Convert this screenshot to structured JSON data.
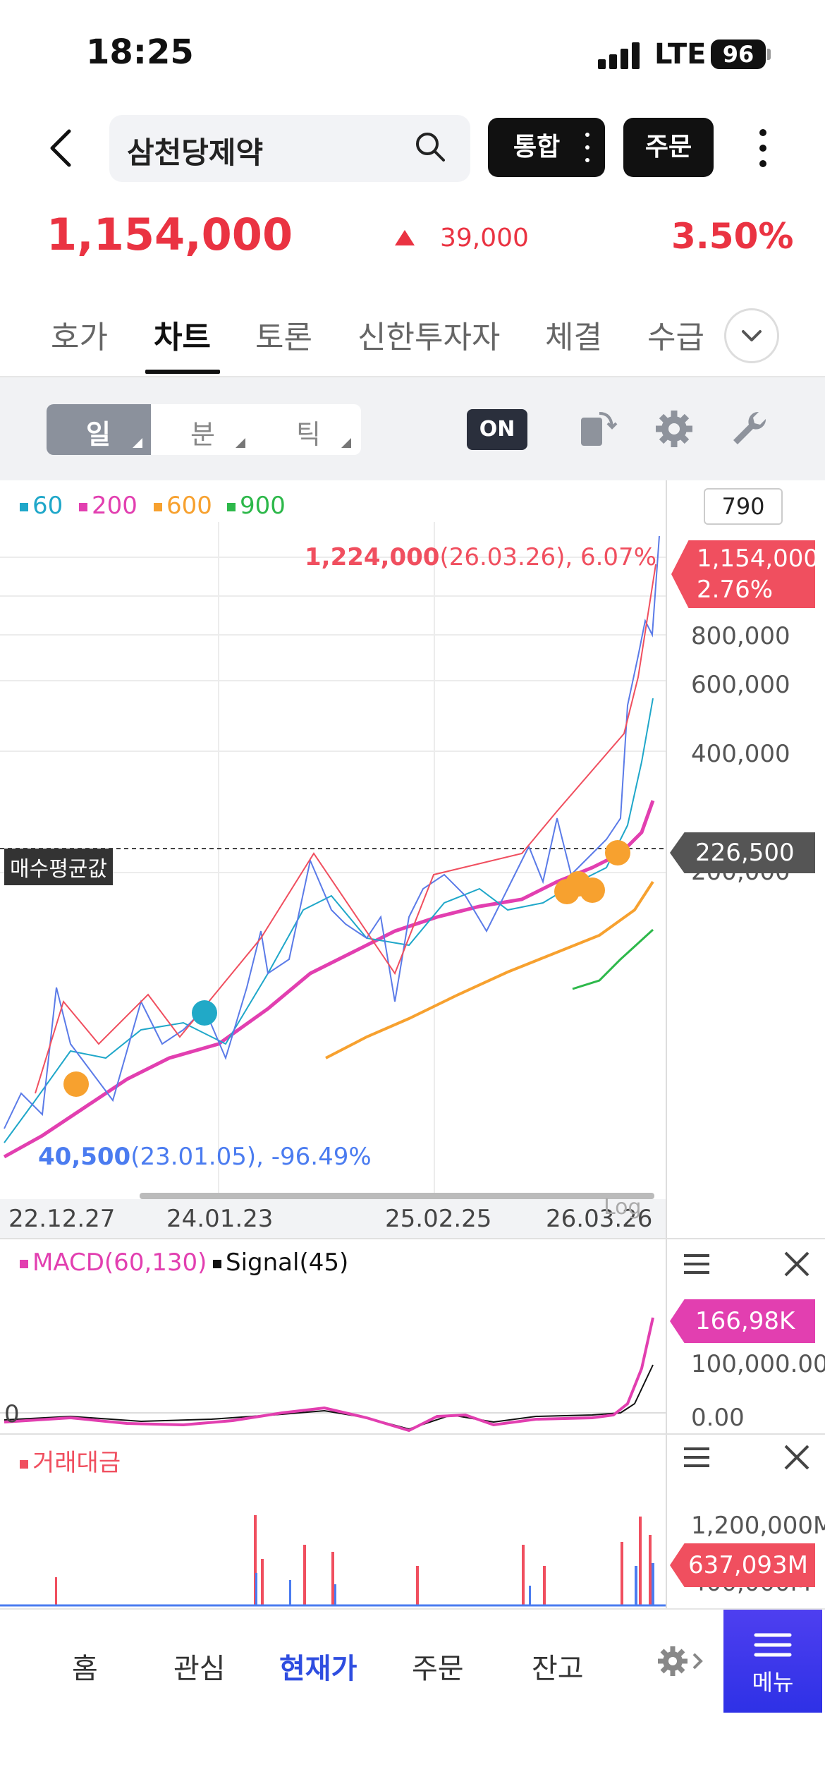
{
  "status": {
    "time": "18:25",
    "network": "LTE",
    "battery": "96"
  },
  "header": {
    "search_value": "삼천당제약",
    "btn_integrated": "통합",
    "btn_order": "주문"
  },
  "quote": {
    "price": "1,154,000",
    "change": "39,000",
    "change_pct": "3.50%"
  },
  "tabs": [
    "호가",
    "차트",
    "토론",
    "신한투자자",
    "체결",
    "수급"
  ],
  "toolbar": {
    "periods": [
      "일",
      "분",
      "틱"
    ],
    "on_label": "ON"
  },
  "chart": {
    "legend": [
      {
        "label": "60",
        "color": "#1fa7c9"
      },
      {
        "label": "200",
        "color": "#e23fb0"
      },
      {
        "label": "600",
        "color": "#f7a12f"
      },
      {
        "label": "900",
        "color": "#2db84a"
      }
    ],
    "count": "790",
    "high_value": "1,224,000",
    "high_detail": "(26.03.26), 6.07%",
    "low_value": "40,500",
    "low_detail": "(23.01.05), -96.49%",
    "current_tag_price": "1,154,000",
    "current_tag_pct": "2.76%",
    "avg_tag": "226,500",
    "avg_label": "매수평균값",
    "y_labels": [
      "800,000",
      "600,000",
      "400,000",
      "200,000"
    ],
    "x_labels": [
      "22.12.27",
      "24.01.23",
      "25.02.25",
      "26.03.26"
    ],
    "log_label": "Log"
  },
  "macd": {
    "legend_macd": "MACD(60,130)",
    "legend_signal": "Signal(45)",
    "tag": "166,98K",
    "y_labels": [
      "100,000.00",
      "0.00"
    ],
    "zero_label": "0"
  },
  "volume": {
    "legend": "거래대금",
    "tag": "637,093M",
    "y_labels": [
      "1,200,000M",
      "400,000M"
    ]
  },
  "bottom_nav": [
    "홈",
    "관심",
    "현재가",
    "주문",
    "잔고"
  ],
  "menu_label": "메뉴",
  "chart_data": {
    "type": "line",
    "title": "",
    "x": [
      "22.12.27",
      "24.01.23",
      "25.02.25",
      "26.03.26"
    ],
    "yscale": "log",
    "series": [
      {
        "name": "60",
        "values": [
          50000,
          95000,
          180000,
          560000
        ]
      },
      {
        "name": "200",
        "values": [
          45000,
          80000,
          165000,
          310000
        ]
      },
      {
        "name": "600",
        "values": [
          null,
          60000,
          110000,
          190000
        ]
      },
      {
        "name": "900",
        "values": [
          null,
          null,
          null,
          120000
        ]
      }
    ],
    "annotations": [
      {
        "label": "1,224,000(26.03.26), 6.07%",
        "type": "high"
      },
      {
        "label": "40,500(23.01.05), -96.49%",
        "type": "low"
      },
      {
        "label": "매수평균값",
        "value": 226500
      }
    ]
  }
}
